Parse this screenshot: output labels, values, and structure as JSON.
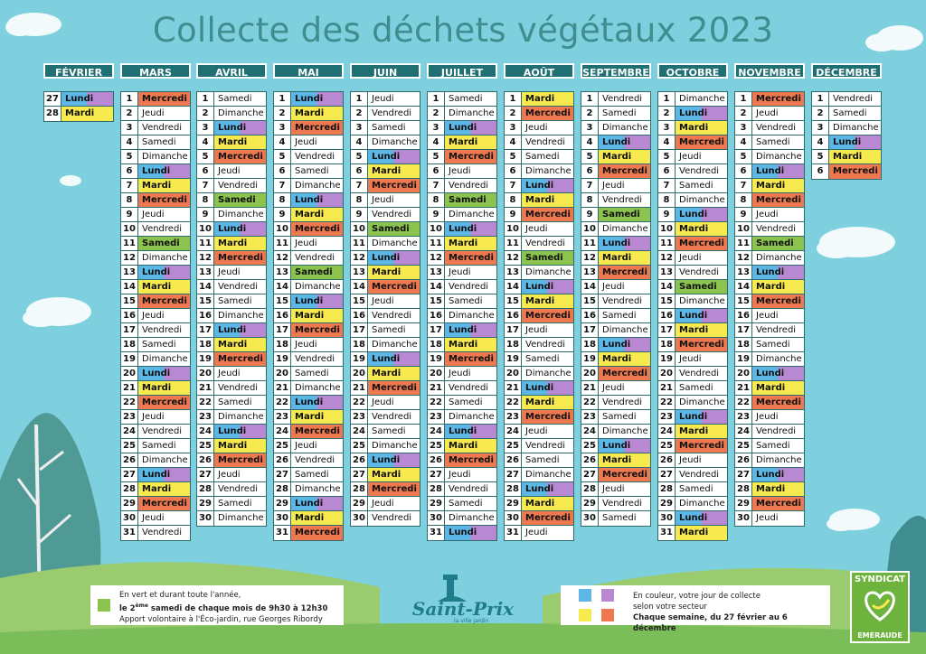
{
  "title": "Collecte des déchets végétaux 2023",
  "colors": {
    "Lundi": "#5cb7e6",
    "Mardi": "#f6ea4f",
    "Mercredi": "#ee7850",
    "Samedi": "#8cc34f",
    "lundi_purple": "#b888d2",
    "header": "#1f6f73",
    "background": "#7fd0de"
  },
  "months": [
    {
      "name": "FÉVRIER",
      "start_day": 27,
      "days": [
        "Lundi",
        "Mardi"
      ]
    },
    {
      "name": "MARS",
      "start_day": 1,
      "days": [
        "Mercredi",
        "Jeudi",
        "Vendredi",
        "Samedi",
        "Dimanche",
        "Lundi",
        "Mardi",
        "Mercredi",
        "Jeudi",
        "Vendredi",
        "Samedi",
        "Dimanche",
        "Lundi",
        "Mardi",
        "Mercredi",
        "Jeudi",
        "Vendredi",
        "Samedi",
        "Dimanche",
        "Lundi",
        "Mardi",
        "Mercredi",
        "Jeudi",
        "Vendredi",
        "Samedi",
        "Dimanche",
        "Lundi",
        "Mardi",
        "Mercredi",
        "Jeudi",
        "Vendredi"
      ]
    },
    {
      "name": "AVRIL",
      "start_day": 1,
      "days": [
        "Samedi",
        "Dimanche",
        "Lundi",
        "Mardi",
        "Mercredi",
        "Jeudi",
        "Vendredi",
        "Samedi",
        "Dimanche",
        "Lundi",
        "Mardi",
        "Mercredi",
        "Jeudi",
        "Vendredi",
        "Samedi",
        "Dimanche",
        "Lundi",
        "Mardi",
        "Mercredi",
        "Jeudi",
        "Vendredi",
        "Samedi",
        "Dimanche",
        "Lundi",
        "Mardi",
        "Mercredi",
        "Jeudi",
        "Vendredi",
        "Samedi",
        "Dimanche"
      ]
    },
    {
      "name": "MAI",
      "start_day": 1,
      "days": [
        "Lundi",
        "Mardi",
        "Mercredi",
        "Jeudi",
        "Vendredi",
        "Samedi",
        "Dimanche",
        "Lundi",
        "Mardi",
        "Mercredi",
        "Jeudi",
        "Vendredi",
        "Samedi",
        "Dimanche",
        "Lundi",
        "Mardi",
        "Mercredi",
        "Jeudi",
        "Vendredi",
        "Samedi",
        "Dimanche",
        "Lundi",
        "Mardi",
        "Mercredi",
        "Jeudi",
        "Vendredi",
        "Samedi",
        "Dimanche",
        "Lundi",
        "Mardi",
        "Mercredi"
      ]
    },
    {
      "name": "JUIN",
      "start_day": 1,
      "days": [
        "Jeudi",
        "Vendredi",
        "Samedi",
        "Dimanche",
        "Lundi",
        "Mardi",
        "Mercredi",
        "Jeudi",
        "Vendredi",
        "Samedi",
        "Dimanche",
        "Lundi",
        "Mardi",
        "Mercredi",
        "Jeudi",
        "Vendredi",
        "Samedi",
        "Dimanche",
        "Lundi",
        "Mardi",
        "Mercredi",
        "Jeudi",
        "Vendredi",
        "Samedi",
        "Dimanche",
        "Lundi",
        "Mardi",
        "Mercredi",
        "Jeudi",
        "Vendredi"
      ]
    },
    {
      "name": "JUILLET",
      "start_day": 1,
      "days": [
        "Samedi",
        "Dimanche",
        "Lundi",
        "Mardi",
        "Mercredi",
        "Jeudi",
        "Vendredi",
        "Samedi",
        "Dimanche",
        "Lundi",
        "Mardi",
        "Mercredi",
        "Jeudi",
        "Vendredi",
        "Samedi",
        "Dimanche",
        "Lundi",
        "Mardi",
        "Mercredi",
        "Jeudi",
        "Vendredi",
        "Samedi",
        "Dimanche",
        "Lundi",
        "Mardi",
        "Mercredi",
        "Jeudi",
        "Vendredi",
        "Samedi",
        "Dimanche",
        "Lundi"
      ]
    },
    {
      "name": "AOÛT",
      "start_day": 1,
      "days": [
        "Mardi",
        "Mercredi",
        "Jeudi",
        "Vendredi",
        "Samedi",
        "Dimanche",
        "Lundi",
        "Mardi",
        "Mercredi",
        "Jeudi",
        "Vendredi",
        "Samedi",
        "Dimanche",
        "Lundi",
        "Mardi",
        "Mercredi",
        "Jeudi",
        "Vendredi",
        "Samedi",
        "Dimanche",
        "Lundi",
        "Mardi",
        "Mercredi",
        "Jeudi",
        "Vendredi",
        "Samedi",
        "Dimanche",
        "Lundi",
        "Mardi",
        "Mercredi",
        "Jeudi"
      ]
    },
    {
      "name": "SEPTEMBRE",
      "start_day": 1,
      "days": [
        "Vendredi",
        "Samedi",
        "Dimanche",
        "Lundi",
        "Mardi",
        "Mercredi",
        "Jeudi",
        "Vendredi",
        "Samedi",
        "Dimanche",
        "Lundi",
        "Mardi",
        "Mercredi",
        "Jeudi",
        "Vendredi",
        "Samedi",
        "Dimanche",
        "Lundi",
        "Mardi",
        "Mercredi",
        "Jeudi",
        "Vendredi",
        "Samedi",
        "Dimanche",
        "Lundi",
        "Mardi",
        "Mercredi",
        "Jeudi",
        "Vendredi",
        "Samedi"
      ]
    },
    {
      "name": "OCTOBRE",
      "start_day": 1,
      "days": [
        "Dimanche",
        "Lundi",
        "Mardi",
        "Mercredi",
        "Jeudi",
        "Vendredi",
        "Samedi",
        "Dimanche",
        "Lundi",
        "Mardi",
        "Mercredi",
        "Jeudi",
        "Vendredi",
        "Samedi",
        "Dimanche",
        "Lundi",
        "Mardi",
        "Mercredi",
        "Jeudi",
        "Vendredi",
        "Samedi",
        "Dimanche",
        "Lundi",
        "Mardi",
        "Mercredi",
        "Jeudi",
        "Vendredi",
        "Samedi",
        "Dimanche",
        "Lundi",
        "Mardi"
      ]
    },
    {
      "name": "NOVEMBRE",
      "start_day": 1,
      "days": [
        "Mercredi",
        "Jeudi",
        "Vendredi",
        "Samedi",
        "Dimanche",
        "Lundi",
        "Mardi",
        "Mercredi",
        "Jeudi",
        "Vendredi",
        "Samedi",
        "Dimanche",
        "Lundi",
        "Mardi",
        "Mercredi",
        "Jeudi",
        "Vendredi",
        "Samedi",
        "Dimanche",
        "Lundi",
        "Mardi",
        "Mercredi",
        "Jeudi",
        "Vendredi",
        "Samedi",
        "Dimanche",
        "Lundi",
        "Mardi",
        "Mercredi",
        "Jeudi"
      ]
    },
    {
      "name": "DÉCEMBRE",
      "start_day": 1,
      "days": [
        "Vendredi",
        "Samedi",
        "Dimanche",
        "Lundi",
        "Mardi",
        "Mercredi"
      ]
    }
  ],
  "samedi_collecte": [
    "MARS-11",
    "AVRIL-8",
    "MAI-13",
    "JUIN-10",
    "JUILLET-8",
    "AOÛT-12",
    "SEPTEMBRE-9",
    "OCTOBRE-14",
    "NOVEMBRE-11"
  ],
  "info_left": {
    "line1": "En vert et durant toute l'année,",
    "line2_prefix": "le 2",
    "line2_sup": "ème",
    "line2_rest": " samedi de chaque mois de 9h30 à 12h30",
    "line3": "Apport volontaire à l'Éco-jardin, rue Georges Ribordy"
  },
  "info_right": {
    "line1": "En couleur, votre jour de collecte",
    "line2": "selon votre secteur",
    "line3": "Chaque semaine, du 27 février au 6 décembre"
  },
  "logo": {
    "name": "Saint-Prix",
    "tagline": "la ville jardin"
  },
  "syndicat": {
    "top": "SYNDICAT",
    "bottom": "EMERAUDE"
  }
}
